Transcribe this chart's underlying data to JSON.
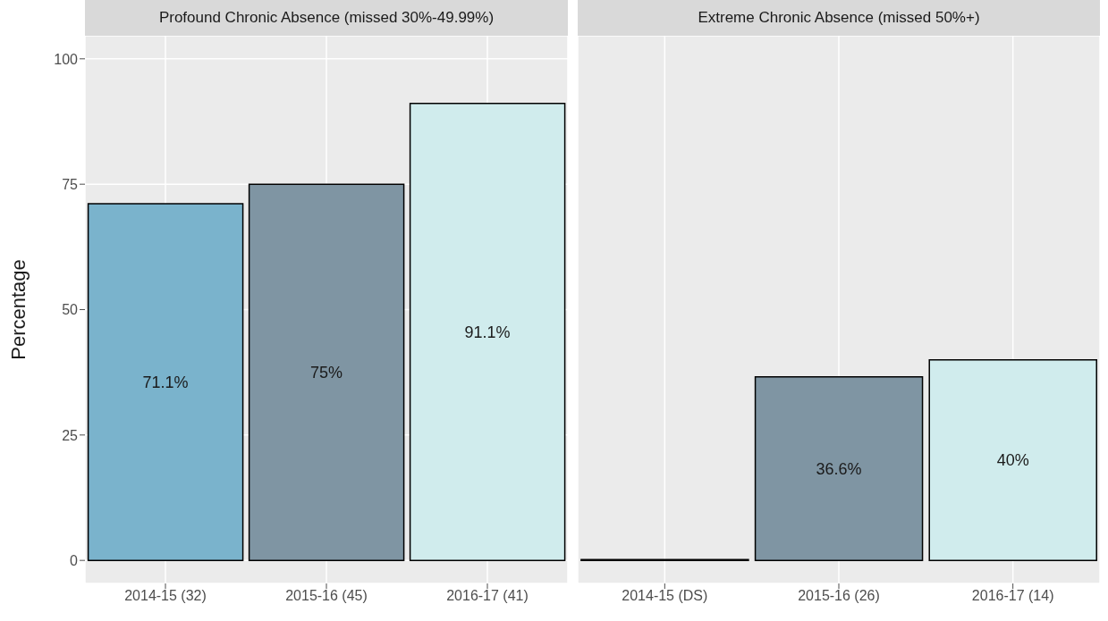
{
  "chart_data": [
    {
      "type": "bar",
      "title": "Profound Chronic Absence (missed 30%-49.99%)",
      "ylabel": "Percentage",
      "categories": [
        "2014-15 (32)",
        "2015-16 (45)",
        "2016-17 (41)"
      ],
      "values": [
        71.1,
        75,
        91.1
      ],
      "colors": [
        "#7ab3cc",
        "#7f95a3",
        "#d0eced"
      ],
      "value_labels": [
        "71.1%",
        "75%",
        "91.1%"
      ],
      "ylim": [
        -4.6,
        104.6
      ],
      "yticks": [
        0,
        25,
        50,
        75,
        100
      ],
      "grid": true
    },
    {
      "type": "bar",
      "title": "Extreme Chronic Absence (missed 50%+)",
      "categories": [
        "2014-15 (DS)",
        "2015-16 (26)",
        "2016-17 (14)"
      ],
      "values": [
        0,
        36.6,
        40
      ],
      "colors": [
        "#7ab3cc",
        "#7f95a3",
        "#d0eced"
      ],
      "value_labels": [
        null,
        "36.6%",
        "40%"
      ],
      "ylim": [
        -4.6,
        104.6
      ],
      "yticks": [
        0,
        25,
        50,
        75,
        100
      ],
      "grid": true,
      "tick_labels": "x"
    }
  ]
}
